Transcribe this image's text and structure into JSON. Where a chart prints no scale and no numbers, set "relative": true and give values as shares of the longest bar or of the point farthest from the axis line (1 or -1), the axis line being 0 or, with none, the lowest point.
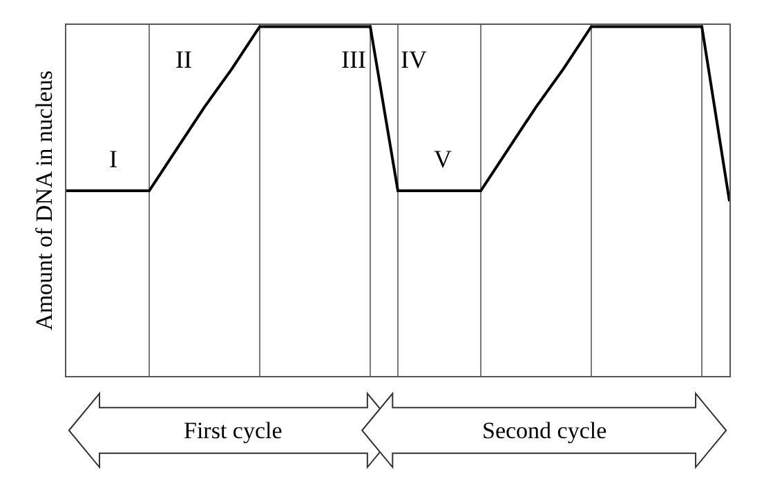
{
  "chart_data": {
    "type": "line",
    "relative": true,
    "ylabel": "Amount of DNA in nucleus",
    "categories": [
      null,
      null,
      null,
      null,
      null,
      null,
      null,
      null,
      null,
      null,
      null,
      null,
      null,
      null,
      null,
      null,
      null,
      null,
      null,
      null,
      null,
      null,
      null,
      null,
      null
    ],
    "series": [
      {
        "color": "#000000",
        "values": [
          0.53,
          0.53,
          0.53,
          0.53,
          0.65,
          0.77,
          0.88,
          1,
          1,
          1,
          1,
          1,
          0.53,
          0.53,
          0.53,
          0.53,
          0.65,
          0.77,
          0.88,
          1,
          1,
          1,
          1,
          1,
          0.5
        ]
      }
    ],
    "grid": "x",
    "marker": "none",
    "line_style": "solid",
    "annotations": [
      "I",
      "II",
      "III",
      "IV",
      "V",
      "First cycle",
      "Second cycle"
    ]
  }
}
